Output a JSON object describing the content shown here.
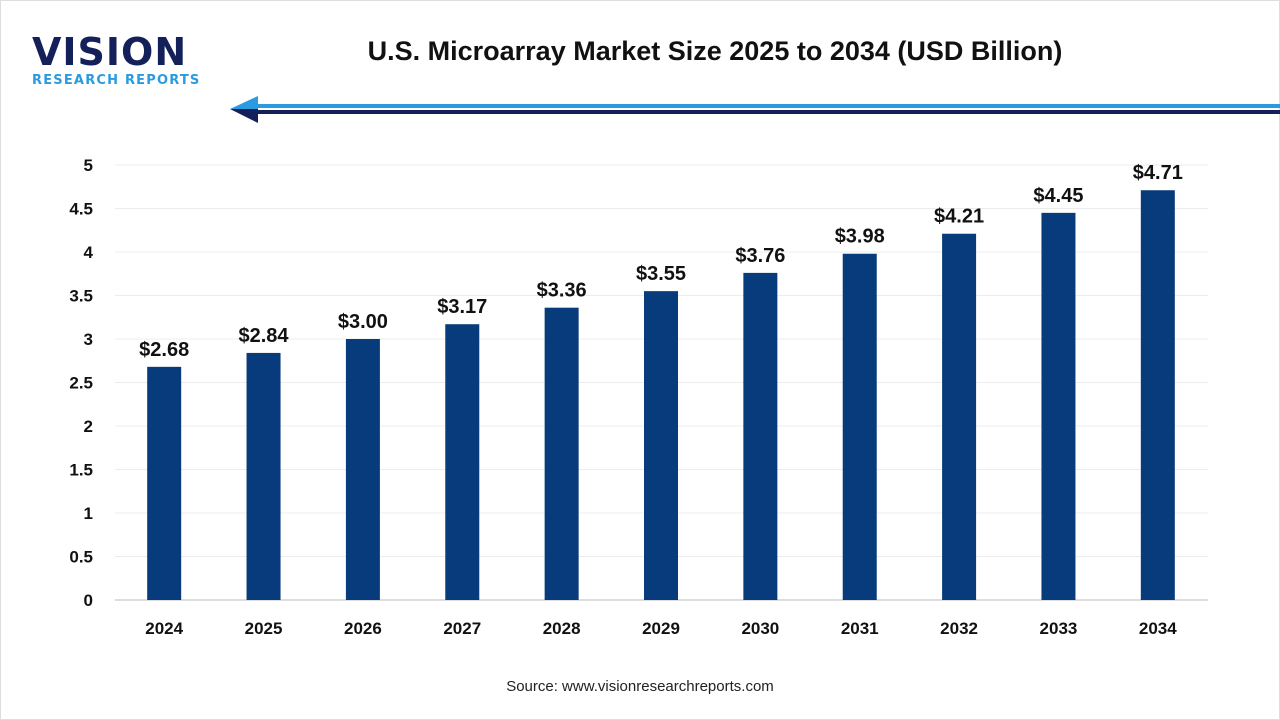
{
  "logo": {
    "main": "VISION",
    "sub": "RESEARCH REPORTS"
  },
  "title": "U.S. Microarray Market Size 2025 to 2034 (USD Billion)",
  "source": "Source: www.visionresearchreports.com",
  "colors": {
    "bar": "#073b7b",
    "arrow_light": "#2a9be0",
    "arrow_dark": "#14205a"
  },
  "chart_data": {
    "type": "bar",
    "title": "U.S. Microarray Market Size 2025 to 2034 (USD Billion)",
    "categories": [
      "2024",
      "2025",
      "2026",
      "2027",
      "2028",
      "2029",
      "2030",
      "2031",
      "2032",
      "2033",
      "2034"
    ],
    "values": [
      2.68,
      2.84,
      3.0,
      3.17,
      3.36,
      3.55,
      3.76,
      3.98,
      4.21,
      4.45,
      4.71
    ],
    "data_labels": [
      "$2.68",
      "$2.84",
      "$3.00",
      "$3.17",
      "$3.36",
      "$3.55",
      "$3.76",
      "$3.98",
      "$4.21",
      "$4.45",
      "$4.71"
    ],
    "yticks": [
      "0",
      "0.5",
      "1",
      "1.5",
      "2",
      "2.5",
      "3",
      "3.5",
      "4",
      "4.5",
      "5"
    ],
    "ylim": [
      0,
      5
    ],
    "xlabel": "",
    "ylabel": "",
    "grid": true,
    "legend": "none"
  }
}
